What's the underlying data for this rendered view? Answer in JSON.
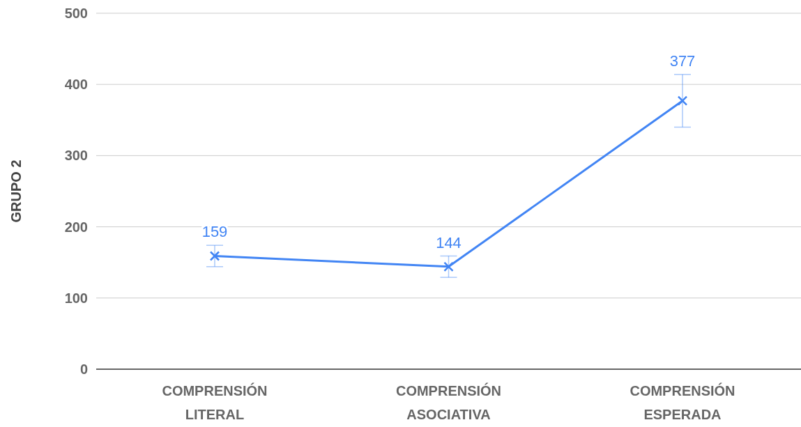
{
  "chart_data": {
    "type": "line",
    "ylabel": "GRUPO 2",
    "categories": [
      "COMPRENSIÓN LITERAL",
      "COMPRENSIÓN ASOCIATIVA",
      "COMPRENSIÓN ESPERADA"
    ],
    "series": [
      {
        "color": "#4285f4",
        "values": [
          159,
          144,
          377
        ],
        "errors": [
          15,
          15,
          37
        ]
      }
    ],
    "ylim": [
      0,
      500
    ],
    "yticks": [
      0,
      100,
      200,
      300,
      400,
      500
    ],
    "grid": "y",
    "marker": "cross",
    "data_labels": true,
    "line_style": "solid"
  }
}
